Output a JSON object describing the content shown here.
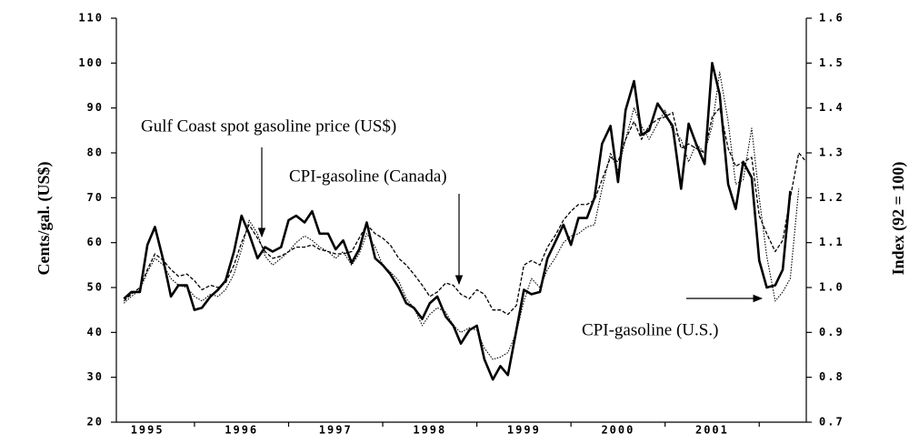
{
  "chart_data": {
    "type": "line",
    "y_label": "Cents/gal. (US$)",
    "y2_label": "Index (92 = 100)",
    "xlim": [
      1995.17,
      2002.5
    ],
    "xticks": [
      {
        "value": 1995.5,
        "label": "1995"
      },
      {
        "value": 1996.5,
        "label": "1996"
      },
      {
        "value": 1997.5,
        "label": "1997"
      },
      {
        "value": 1998.5,
        "label": "1998"
      },
      {
        "value": 1999.5,
        "label": "1999"
      },
      {
        "value": 2000.5,
        "label": "2000"
      },
      {
        "value": 2001.5,
        "label": "2001"
      }
    ],
    "ylim": [
      20,
      110
    ],
    "yticks": [
      20,
      30,
      40,
      50,
      60,
      70,
      80,
      90,
      100,
      110
    ],
    "y2lim": [
      0.7,
      1.6
    ],
    "y2ticks": [
      0.7,
      0.8,
      0.9,
      {
        "value": 1,
        "label": "1.0"
      },
      1.1,
      1.2,
      1.3,
      1.4,
      1.5,
      1.6
    ],
    "x": [
      1995.25,
      1995.33,
      1995.42,
      1995.5,
      1995.58,
      1995.67,
      1995.75,
      1995.83,
      1995.92,
      1996,
      1996.08,
      1996.17,
      1996.25,
      1996.33,
      1996.42,
      1996.5,
      1996.58,
      1996.67,
      1996.75,
      1996.83,
      1996.92,
      1997,
      1997.08,
      1997.17,
      1997.25,
      1997.33,
      1997.42,
      1997.5,
      1997.58,
      1997.67,
      1997.75,
      1997.83,
      1997.92,
      1998,
      1998.08,
      1998.17,
      1998.25,
      1998.33,
      1998.42,
      1998.5,
      1998.58,
      1998.67,
      1998.75,
      1998.83,
      1998.92,
      1999,
      1999.08,
      1999.17,
      1999.25,
      1999.33,
      1999.42,
      1999.5,
      1999.58,
      1999.67,
      1999.75,
      1999.83,
      1999.92,
      2000,
      2000.08,
      2000.17,
      2000.25,
      2000.33,
      2000.42,
      2000.5,
      2000.58,
      2000.67,
      2000.75,
      2000.83,
      2000.92,
      2001,
      2001.08,
      2001.17,
      2001.25,
      2001.33,
      2001.42,
      2001.5,
      2001.58,
      2001.67,
      2001.75,
      2001.83,
      2001.92,
      2002,
      2002.08,
      2002.17,
      2002.25,
      2002.33,
      2002.42,
      2002.5
    ],
    "series": [
      {
        "name": "Gulf Coast spot gasoline price (US$)",
        "color": "#000000",
        "style": "solid",
        "axis": "y",
        "values": [
          47.5,
          49,
          49,
          59.5,
          63.5,
          56,
          48,
          50.5,
          50.5,
          45,
          45.5,
          48,
          49.5,
          51.5,
          58,
          66,
          62,
          56.5,
          59,
          58,
          59,
          65,
          66,
          64.5,
          67,
          62,
          62,
          58.5,
          60.5,
          55.5,
          58.5,
          64.5,
          56.5,
          55,
          53,
          50,
          46.5,
          45.5,
          43,
          46.5,
          48,
          43.5,
          41.5,
          37.5,
          40.5,
          41.5,
          34,
          29.5,
          32.5,
          30.5,
          40.5,
          49.5,
          48.5,
          49,
          56.5,
          60,
          64,
          59.5,
          65.5,
          65.5,
          70,
          82,
          86,
          73.5,
          89.5,
          96,
          84,
          85,
          91,
          88.5,
          86,
          72,
          86.5,
          82,
          77.5,
          100,
          93,
          73,
          67.5,
          78,
          74.5,
          56,
          50,
          50.5,
          54,
          71.5,
          null,
          null
        ]
      },
      {
        "name": "CPI-gasoline (Canada)",
        "color": "#000000",
        "style": "dashed",
        "axis": "y2",
        "values": [
          0.97,
          0.985,
          1.0,
          1.04,
          1.075,
          1.06,
          1.04,
          1.025,
          1.03,
          1.015,
          0.995,
          1.005,
          1.0,
          1.01,
          1.05,
          1.1,
          1.14,
          1.11,
          1.08,
          1.065,
          1.07,
          1.08,
          1.09,
          1.09,
          1.095,
          1.085,
          1.08,
          1.075,
          1.075,
          1.08,
          1.11,
          1.14,
          1.12,
          1.11,
          1.095,
          1.065,
          1.05,
          1.03,
          1.005,
          0.98,
          0.99,
          1.01,
          1.005,
          0.985,
          0.975,
          0.995,
          0.985,
          0.95,
          0.95,
          0.94,
          0.96,
          1.05,
          1.06,
          1.05,
          1.09,
          1.115,
          1.15,
          1.17,
          1.185,
          1.185,
          1.195,
          1.24,
          1.29,
          1.28,
          1.33,
          1.37,
          1.33,
          1.36,
          1.375,
          1.38,
          1.39,
          1.31,
          1.32,
          1.31,
          1.3,
          1.38,
          1.4,
          1.31,
          1.27,
          1.28,
          1.29,
          1.16,
          1.12,
          1.08,
          1.105,
          1.2,
          1.3,
          1.28
        ]
      },
      {
        "name": "CPI-gasoline (U.S.)",
        "color": "#000000",
        "style": "dotted",
        "axis": "y2",
        "values": [
          0.965,
          0.98,
          0.995,
          1.035,
          1.065,
          1.05,
          1.02,
          1.005,
          1.0,
          0.98,
          0.97,
          0.985,
          0.98,
          0.995,
          1.03,
          1.085,
          1.15,
          1.12,
          1.07,
          1.05,
          1.065,
          1.08,
          1.1,
          1.115,
          1.105,
          1.09,
          1.08,
          1.065,
          1.08,
          1.05,
          1.075,
          1.12,
          1.09,
          1.05,
          1.035,
          1.015,
          0.975,
          0.955,
          0.915,
          0.94,
          0.955,
          0.945,
          0.915,
          0.9,
          0.91,
          0.905,
          0.865,
          0.84,
          0.845,
          0.855,
          0.9,
          0.97,
          1.02,
          1.0,
          1.04,
          1.065,
          1.1,
          1.115,
          1.12,
          1.135,
          1.14,
          1.22,
          1.3,
          1.26,
          1.33,
          1.4,
          1.36,
          1.33,
          1.365,
          1.395,
          1.35,
          1.33,
          1.28,
          1.32,
          1.3,
          1.36,
          1.48,
          1.37,
          1.23,
          1.24,
          1.355,
          1.2,
          1.07,
          0.97,
          0.99,
          1.02,
          1.22,
          null
        ]
      }
    ]
  }
}
